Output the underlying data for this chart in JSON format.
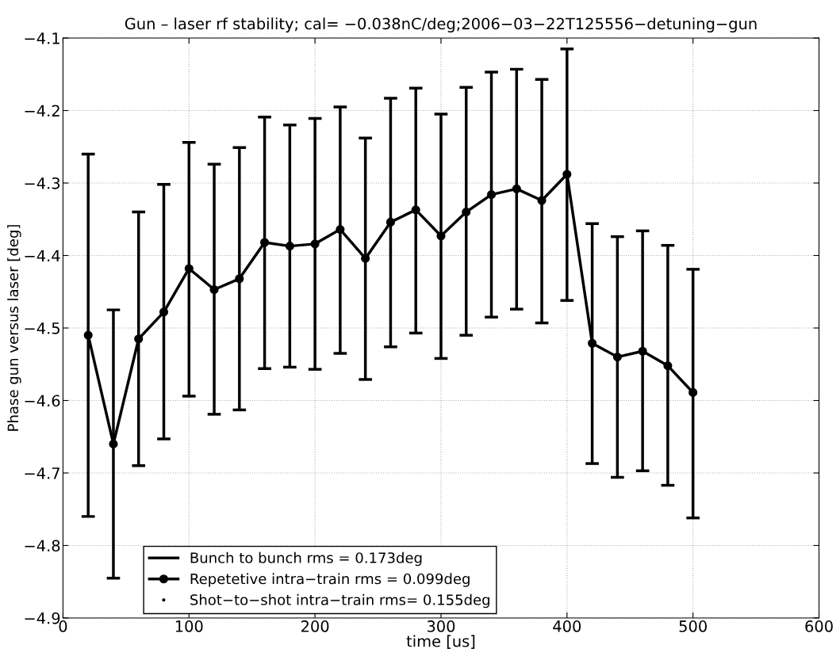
{
  "chart_data": {
    "type": "line",
    "title": "Gun – laser rf stability; cal= −0.038nC/deg;2006−03−22T125556−detuning−gun",
    "xlabel": "time [us]",
    "ylabel": "Phase gun versus laser [deg]",
    "x": [
      20,
      40,
      60,
      80,
      100,
      120,
      140,
      160,
      180,
      200,
      220,
      240,
      260,
      280,
      300,
      320,
      340,
      360,
      380,
      400,
      420,
      440,
      460,
      480,
      500
    ],
    "series": [
      {
        "name": "Bunch to bunch rms = 0.173deg",
        "color": "#000000",
        "marker": "none",
        "values": [
          null,
          null,
          null,
          null,
          null,
          null,
          null,
          null,
          null,
          null,
          null,
          null,
          null,
          null,
          null,
          null,
          null,
          null,
          null,
          null,
          null,
          null,
          null,
          null,
          null
        ]
      },
      {
        "name": "Repetetive intra−train rms = 0.099deg",
        "color": "#000000",
        "marker": "circle",
        "values": [
          -4.51,
          -4.66,
          -4.515,
          -4.478,
          -4.418,
          -4.447,
          -4.432,
          -4.382,
          -4.387,
          -4.384,
          -4.364,
          -4.404,
          -4.354,
          -4.337,
          -4.373,
          -4.34,
          -4.316,
          -4.308,
          -4.324,
          -4.288,
          -4.521,
          -4.54,
          -4.532,
          -4.552,
          -4.589
        ],
        "errors": [
          [
            -4.76,
            -4.26
          ],
          [
            -4.845,
            -4.475
          ],
          [
            -4.69,
            -4.34
          ],
          [
            -4.653,
            -4.302
          ],
          [
            -4.594,
            -4.244
          ],
          [
            -4.619,
            -4.274
          ],
          [
            -4.613,
            -4.251
          ],
          [
            -4.556,
            -4.209
          ],
          [
            -4.554,
            -4.22
          ],
          [
            -4.557,
            -4.211
          ],
          [
            -4.535,
            -4.195
          ],
          [
            -4.571,
            -4.238
          ],
          [
            -4.526,
            -4.183
          ],
          [
            -4.507,
            -4.169
          ],
          [
            -4.542,
            -4.205
          ],
          [
            -4.51,
            -4.168
          ],
          [
            -4.485,
            -4.147
          ],
          [
            -4.474,
            -4.143
          ],
          [
            -4.493,
            -4.157
          ],
          [
            -4.462,
            -4.115
          ],
          [
            -4.687,
            -4.356
          ],
          [
            -4.706,
            -4.374
          ],
          [
            -4.697,
            -4.366
          ],
          [
            -4.717,
            -4.386
          ],
          [
            -4.762,
            -4.419
          ]
        ]
      },
      {
        "name": "Shot−to−shot intra−train rms= 0.155deg",
        "color": "#000000",
        "type": "scatter",
        "marker": "circle",
        "values": [
          null,
          null,
          null,
          null,
          null,
          null,
          null,
          null,
          null,
          null,
          null,
          null,
          null,
          null,
          null,
          null,
          null,
          null,
          null,
          null,
          null,
          null,
          null,
          null,
          null
        ]
      }
    ],
    "xlim": [
      0,
      600
    ],
    "xticks": [
      0,
      100,
      200,
      300,
      400,
      500,
      600
    ],
    "ylim": [
      -4.9,
      -4.1
    ],
    "yticks": [
      -4.9,
      -4.8,
      -4.7,
      -4.6,
      -4.5,
      -4.4,
      -4.3,
      -4.2,
      -4.1
    ],
    "grid": true,
    "legend": "bottom",
    "line_style": "solid"
  }
}
